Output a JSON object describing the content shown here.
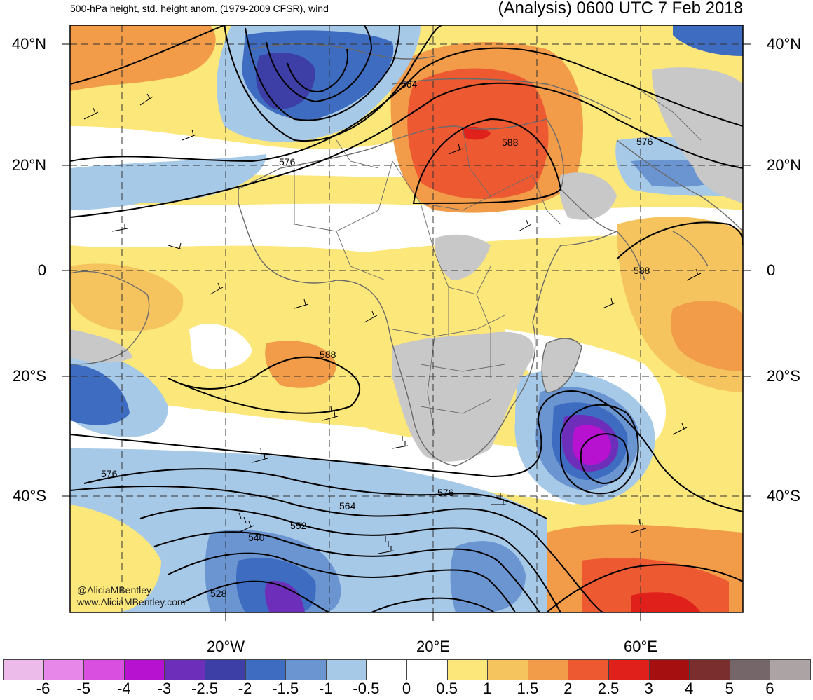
{
  "title_left": "500-hPa height, std. height anom. (1979-2009 CFSR), wind",
  "title_right": "(Analysis) 0600 UTC 7 Feb 2018",
  "lat_labels": [
    "40°N",
    "20°N",
    "0",
    "20°S",
    "40°S"
  ],
  "lon_labels": [
    "20°W",
    "20°E",
    "60°E"
  ],
  "contour_labels": [
    "564",
    "588",
    "576",
    "576",
    "588",
    "588",
    "576",
    "576",
    "564",
    "552",
    "540",
    "528"
  ],
  "watermark": [
    "@AliciaMBentley",
    "www.AliciaMBentley.com"
  ],
  "colorbar": {
    "labels": [
      "-6",
      "-5",
      "-4",
      "-3",
      "-2.5",
      "-2",
      "-1.5",
      "-1",
      "-0.5",
      "0",
      "0.5",
      "1",
      "1.5",
      "2",
      "2.5",
      "3",
      "4",
      "5",
      "6"
    ],
    "colors": [
      "#ecbbe9",
      "#e887ea",
      "#d94fe0",
      "#b612cf",
      "#6d2fba",
      "#3d3ea6",
      "#3e6cc1",
      "#6b95d1",
      "#a7c9e8",
      "#ffffff",
      "#ffffff",
      "#fce77a",
      "#f5c45e",
      "#f29b49",
      "#ed5a32",
      "#e0201b",
      "#a50f0f",
      "#7a2e2e",
      "#756769",
      "#aba3a4"
    ]
  },
  "colors": {
    "land_gray": "#c8c8c8",
    "border": "#6a6a6a"
  }
}
